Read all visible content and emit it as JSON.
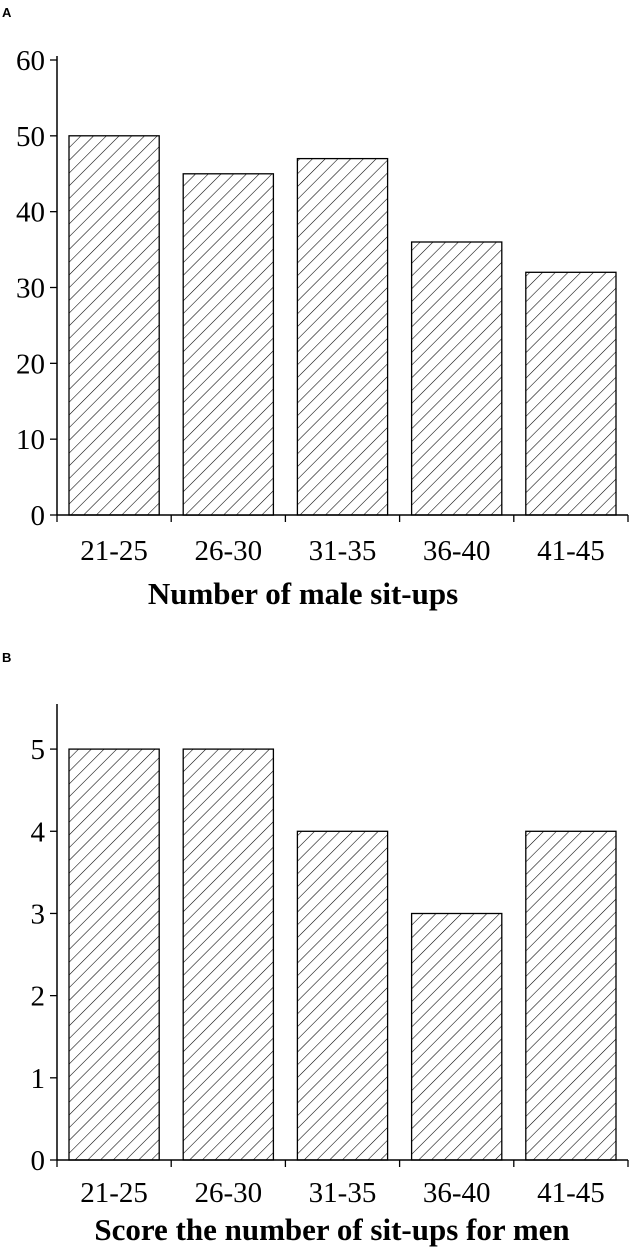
{
  "chart_data": [
    {
      "panel": "A",
      "type": "bar",
      "categories": [
        "21-25",
        "26-30",
        "31-35",
        "36-40",
        "41-45"
      ],
      "values": [
        50,
        45,
        47,
        36,
        32
      ],
      "xlabel": "Number of male sit-ups",
      "ylabel": "",
      "ylim": [
        0,
        60
      ],
      "yticks": [
        "0",
        "10",
        "20",
        "30",
        "40",
        "50",
        "60"
      ],
      "bar_fill": "hatched",
      "grid": false
    },
    {
      "panel": "B",
      "type": "bar",
      "categories": [
        "21-25",
        "26-30",
        "31-35",
        "36-40",
        "41-45"
      ],
      "values": [
        5,
        5,
        4,
        3,
        4
      ],
      "xlabel": "Score the number of sit-ups for men",
      "ylabel": "",
      "ylim": [
        0,
        5.5
      ],
      "yticks": [
        "0",
        "1",
        "2",
        "3",
        "4",
        "5"
      ],
      "bar_fill": "hatched",
      "grid": false
    }
  ],
  "colors": {
    "bar_stroke": "#000000",
    "hatch": "#000000",
    "background": "#ffffff"
  }
}
